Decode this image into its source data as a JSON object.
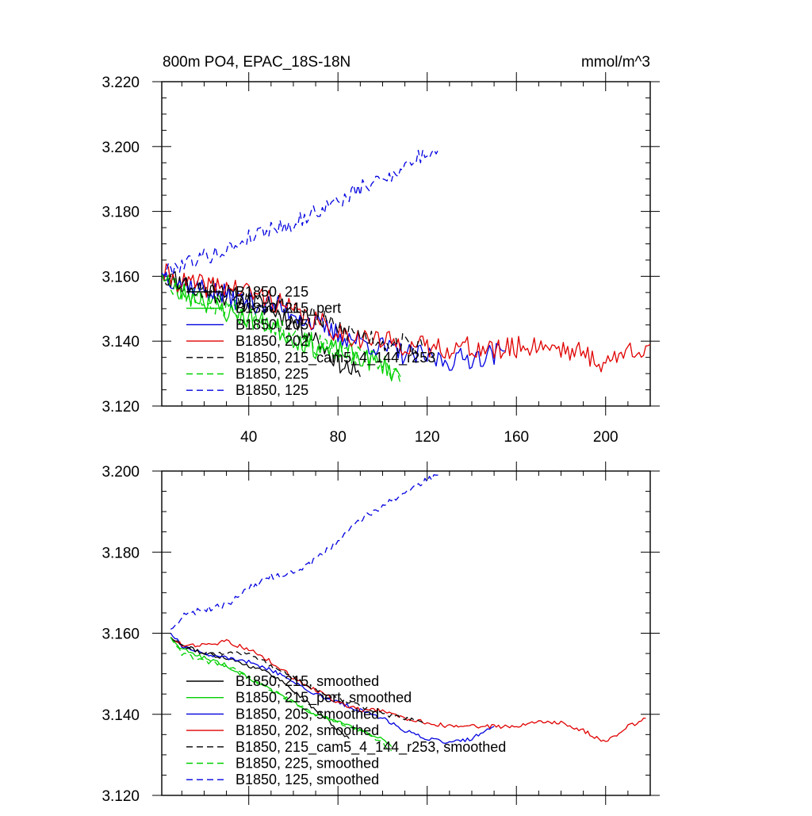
{
  "figure": {
    "title_left": "800m PO4, EPAC_18S-18N",
    "title_right": "mmol/m^3"
  },
  "chart_data": [
    {
      "type": "line",
      "panel": "top",
      "xlim": [
        1,
        220
      ],
      "ylim": [
        3.12,
        3.22
      ],
      "x_ticks": [
        40,
        80,
        120,
        160,
        200
      ],
      "x_tick_labels": [
        "40",
        "80",
        "120",
        "160",
        "200"
      ],
      "y_ticks": [
        3.12,
        3.14,
        3.16,
        3.18,
        3.2,
        3.22
      ],
      "y_tick_labels": [
        "3.120",
        "3.140",
        "3.160",
        "3.180",
        "3.200",
        "3.220"
      ],
      "legend_location": "lower-left",
      "series": [
        {
          "name": "B1850, 215",
          "color": "#000000",
          "dash": "solid",
          "noise": 0.0035,
          "seed": 11,
          "points": [
            [
              1,
              3.161
            ],
            [
              10,
              3.158
            ],
            [
              20,
              3.156
            ],
            [
              30,
              3.154
            ],
            [
              40,
              3.152
            ],
            [
              50,
              3.15
            ],
            [
              60,
              3.146
            ],
            [
              70,
              3.141
            ],
            [
              80,
              3.134
            ],
            [
              90,
              3.129
            ]
          ]
        },
        {
          "name": "B1850, 215_pert",
          "color": "#00d000",
          "dash": "solid",
          "noise": 0.0035,
          "seed": 23,
          "points": [
            [
              1,
              3.161
            ],
            [
              10,
              3.155
            ],
            [
              20,
              3.153
            ],
            [
              30,
              3.149
            ],
            [
              40,
              3.147
            ],
            [
              50,
              3.145
            ],
            [
              60,
              3.141
            ],
            [
              70,
              3.138
            ],
            [
              80,
              3.137
            ],
            [
              90,
              3.135
            ],
            [
              100,
              3.133
            ],
            [
              108,
              3.129
            ]
          ]
        },
        {
          "name": "B1850, 205",
          "color": "#0000e0",
          "dash": "solid",
          "noise": 0.0035,
          "seed": 37,
          "points": [
            [
              1,
              3.161
            ],
            [
              10,
              3.158
            ],
            [
              20,
              3.156
            ],
            [
              30,
              3.154
            ],
            [
              40,
              3.152
            ],
            [
              50,
              3.151
            ],
            [
              60,
              3.149
            ],
            [
              70,
              3.145
            ],
            [
              80,
              3.142
            ],
            [
              90,
              3.14
            ],
            [
              100,
              3.138
            ],
            [
              110,
              3.136
            ],
            [
              120,
              3.135
            ],
            [
              130,
              3.134
            ],
            [
              140,
              3.135
            ],
            [
              150,
              3.136
            ],
            [
              155,
              3.137
            ]
          ]
        },
        {
          "name": "B1850, 202",
          "color": "#e00000",
          "dash": "solid",
          "noise": 0.0035,
          "seed": 41,
          "points": [
            [
              1,
              3.161
            ],
            [
              10,
              3.158
            ],
            [
              20,
              3.157
            ],
            [
              30,
              3.157
            ],
            [
              40,
              3.155
            ],
            [
              50,
              3.153
            ],
            [
              60,
              3.149
            ],
            [
              70,
              3.146
            ],
            [
              80,
              3.143
            ],
            [
              90,
              3.141
            ],
            [
              100,
              3.14
            ],
            [
              110,
              3.139
            ],
            [
              120,
              3.138
            ],
            [
              130,
              3.138
            ],
            [
              140,
              3.138
            ],
            [
              150,
              3.137
            ],
            [
              160,
              3.138
            ],
            [
              170,
              3.139
            ],
            [
              180,
              3.138
            ],
            [
              190,
              3.136
            ],
            [
              200,
              3.133
            ],
            [
              210,
              3.137
            ],
            [
              220,
              3.139
            ]
          ]
        },
        {
          "name": "B1850, 215_cam5_4_144_r253",
          "color": "#000000",
          "dash": "dashed",
          "noise": 0.0035,
          "seed": 53,
          "points": [
            [
              1,
              3.161
            ],
            [
              10,
              3.158
            ],
            [
              20,
              3.156
            ],
            [
              30,
              3.155
            ],
            [
              40,
              3.153
            ],
            [
              50,
              3.152
            ],
            [
              60,
              3.15
            ],
            [
              70,
              3.147
            ],
            [
              80,
              3.144
            ],
            [
              90,
              3.142
            ],
            [
              100,
              3.14
            ],
            [
              110,
              3.139
            ],
            [
              118,
              3.138
            ]
          ]
        },
        {
          "name": "B1850, 225",
          "color": "#00d000",
          "dash": "dashed",
          "noise": 0.0035,
          "seed": 67,
          "points": [
            [
              1,
              3.161
            ],
            [
              10,
              3.155
            ],
            [
              20,
              3.152
            ],
            [
              30,
              3.151
            ],
            [
              40,
              3.148
            ],
            [
              50,
              3.146
            ],
            [
              60,
              3.142
            ],
            [
              70,
              3.139
            ],
            [
              80,
              3.136
            ],
            [
              90,
              3.135
            ],
            [
              100,
              3.133
            ],
            [
              106,
              3.129
            ],
            [
              108,
              3.127
            ]
          ]
        },
        {
          "name": "B1850, 125",
          "color": "#0000e0",
          "dash": "dashed",
          "noise": 0.0025,
          "seed": 79,
          "points": [
            [
              1,
              3.161
            ],
            [
              10,
              3.164
            ],
            [
              20,
              3.166
            ],
            [
              30,
              3.168
            ],
            [
              40,
              3.172
            ],
            [
              50,
              3.175
            ],
            [
              60,
              3.176
            ],
            [
              70,
              3.18
            ],
            [
              80,
              3.183
            ],
            [
              90,
              3.187
            ],
            [
              100,
              3.19
            ],
            [
              110,
              3.194
            ],
            [
              120,
              3.198
            ],
            [
              125,
              3.199
            ]
          ]
        }
      ]
    },
    {
      "type": "line",
      "panel": "bottom",
      "xlim": [
        1,
        220
      ],
      "ylim": [
        3.12,
        3.2
      ],
      "x_ticks": [
        40,
        80,
        120,
        160,
        200
      ],
      "y_ticks": [
        3.12,
        3.14,
        3.16,
        3.18,
        3.2
      ],
      "y_tick_labels": [
        "3.120",
        "3.140",
        "3.160",
        "3.180",
        "3.200"
      ],
      "legend_location": "lower-left",
      "series": [
        {
          "name": "B1850, 215, smoothed",
          "color": "#000000",
          "dash": "solid",
          "noise": 0.0005,
          "seed": 111,
          "points": [
            [
              5,
              3.159
            ],
            [
              10,
              3.157
            ],
            [
              20,
              3.155
            ],
            [
              30,
              3.154
            ],
            [
              40,
              3.152
            ],
            [
              50,
              3.15
            ],
            [
              60,
              3.146
            ],
            [
              70,
              3.141
            ],
            [
              75,
              3.139
            ],
            [
              80,
              3.136
            ],
            [
              85,
              3.134
            ]
          ]
        },
        {
          "name": "B1850, 215_pert, smoothed",
          "color": "#00d000",
          "dash": "solid",
          "noise": 0.0005,
          "seed": 122,
          "points": [
            [
              5,
              3.159
            ],
            [
              10,
              3.156
            ],
            [
              20,
              3.154
            ],
            [
              30,
              3.152
            ],
            [
              40,
              3.149
            ],
            [
              50,
              3.146
            ],
            [
              60,
              3.143
            ],
            [
              70,
              3.14
            ],
            [
              80,
              3.138
            ],
            [
              90,
              3.136
            ],
            [
              100,
              3.134
            ],
            [
              104,
              3.132
            ]
          ]
        },
        {
          "name": "B1850, 205, smoothed",
          "color": "#0000e0",
          "dash": "solid",
          "noise": 0.0005,
          "seed": 133,
          "points": [
            [
              5,
              3.16
            ],
            [
              10,
              3.157
            ],
            [
              20,
              3.155
            ],
            [
              30,
              3.154
            ],
            [
              40,
              3.153
            ],
            [
              50,
              3.151
            ],
            [
              60,
              3.148
            ],
            [
              70,
              3.145
            ],
            [
              80,
              3.143
            ],
            [
              90,
              3.141
            ],
            [
              100,
              3.139
            ],
            [
              110,
              3.136
            ],
            [
              120,
              3.134
            ],
            [
              130,
              3.133
            ],
            [
              140,
              3.134
            ],
            [
              150,
              3.137
            ]
          ]
        },
        {
          "name": "B1850, 202, smoothed",
          "color": "#e00000",
          "dash": "solid",
          "noise": 0.0005,
          "seed": 144,
          "points": [
            [
              5,
              3.159
            ],
            [
              10,
              3.157
            ],
            [
              20,
              3.157
            ],
            [
              30,
              3.158
            ],
            [
              40,
              3.156
            ],
            [
              50,
              3.153
            ],
            [
              60,
              3.149
            ],
            [
              70,
              3.146
            ],
            [
              80,
              3.143
            ],
            [
              90,
              3.141
            ],
            [
              100,
              3.141
            ],
            [
              110,
              3.139
            ],
            [
              120,
              3.138
            ],
            [
              130,
              3.137
            ],
            [
              140,
              3.137
            ],
            [
              150,
              3.137
            ],
            [
              160,
              3.137
            ],
            [
              170,
              3.138
            ],
            [
              180,
              3.138
            ],
            [
              190,
              3.136
            ],
            [
              200,
              3.133
            ],
            [
              210,
              3.137
            ],
            [
              215,
              3.138
            ],
            [
              218,
              3.139
            ]
          ]
        },
        {
          "name": "B1850, 215_cam5_4_144_r253, smoothed",
          "color": "#000000",
          "dash": "dashed",
          "noise": 0.0005,
          "seed": 155,
          "points": [
            [
              5,
              3.159
            ],
            [
              10,
              3.157
            ],
            [
              20,
              3.155
            ],
            [
              30,
              3.155
            ],
            [
              40,
              3.155
            ],
            [
              50,
              3.152
            ],
            [
              60,
              3.149
            ],
            [
              70,
              3.146
            ],
            [
              80,
              3.144
            ],
            [
              90,
              3.142
            ],
            [
              100,
              3.14
            ],
            [
              110,
              3.139
            ],
            [
              118,
              3.138
            ]
          ]
        },
        {
          "name": "B1850, 225, smoothed",
          "color": "#00d000",
          "dash": "dashed",
          "noise": 0.0005,
          "seed": 166,
          "points": [
            [
              5,
              3.159
            ],
            [
              10,
              3.155
            ],
            [
              20,
              3.153
            ],
            [
              30,
              3.152
            ],
            [
              40,
              3.149
            ],
            [
              50,
              3.146
            ],
            [
              60,
              3.143
            ],
            [
              70,
              3.14
            ],
            [
              80,
              3.138
            ],
            [
              90,
              3.136
            ],
            [
              100,
              3.133
            ],
            [
              104,
              3.131
            ]
          ]
        },
        {
          "name": "B1850, 125, smoothed",
          "color": "#0000e0",
          "dash": "dashed",
          "noise": 0.0008,
          "seed": 177,
          "points": [
            [
              5,
              3.161
            ],
            [
              10,
              3.164
            ],
            [
              20,
              3.166
            ],
            [
              30,
              3.167
            ],
            [
              40,
              3.171
            ],
            [
              50,
              3.174
            ],
            [
              60,
              3.175
            ],
            [
              70,
              3.178
            ],
            [
              80,
              3.183
            ],
            [
              90,
              3.188
            ],
            [
              100,
              3.191
            ],
            [
              110,
              3.195
            ],
            [
              120,
              3.198
            ],
            [
              125,
              3.199
            ]
          ]
        }
      ]
    }
  ]
}
